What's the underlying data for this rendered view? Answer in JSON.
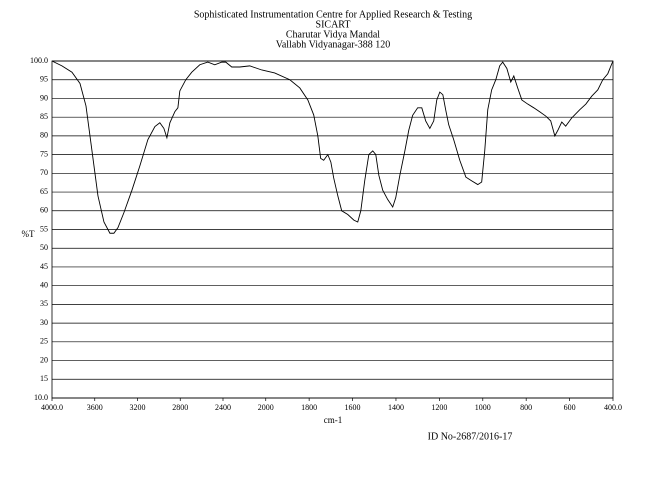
{
  "chart_data": {
    "type": "line",
    "title": "Sophisticated Instrumentation Centre for Applied Research & Testing",
    "subtitle": [
      "SICART",
      "Charutar Vidya Mandal",
      "Vallabh Vidyanagar-388 120"
    ],
    "xlabel": "cm-1",
    "ylabel": "%T",
    "annotation": "ID No-2687/2016-17",
    "color": "#000000",
    "grid": true,
    "xlim": [
      4000,
      400
    ],
    "x_scale_change": 2000,
    "ylim": [
      10,
      100
    ],
    "xticks": [
      {
        "value": 4000,
        "label": "4000.0"
      },
      3600,
      3200,
      2800,
      2400,
      2000,
      1800,
      1600,
      1400,
      1200,
      1000,
      800,
      600,
      {
        "value": 400,
        "label": "400.0"
      }
    ],
    "yticks": [
      {
        "value": 10,
        "label": "10.0"
      },
      15,
      20,
      25,
      30,
      35,
      40,
      45,
      50,
      55,
      60,
      65,
      70,
      75,
      80,
      85,
      90,
      95,
      {
        "value": 100,
        "label": "100.0"
      }
    ],
    "x": [
      4000,
      3907,
      3813,
      3738,
      3682,
      3626,
      3570,
      3514,
      3458,
      3421,
      3383,
      3327,
      3252,
      3178,
      3103,
      3037,
      2991,
      2953,
      2925,
      2897,
      2850,
      2822,
      2804,
      2748,
      2692,
      2617,
      2542,
      2477,
      2411,
      2374,
      2318,
      2243,
      2150,
      2037,
      1959,
      1889,
      1843,
      1806,
      1779,
      1760,
      1747,
      1733,
      1714,
      1700,
      1687,
      1668,
      1650,
      1622,
      1594,
      1576,
      1562,
      1544,
      1525,
      1507,
      1493,
      1479,
      1461,
      1438,
      1415,
      1401,
      1382,
      1359,
      1341,
      1323,
      1300,
      1281,
      1263,
      1244,
      1226,
      1212,
      1198,
      1184,
      1171,
      1157,
      1134,
      1106,
      1078,
      1051,
      1023,
      1005,
      991,
      977,
      959,
      940,
      922,
      908,
      889,
      871,
      857,
      839,
      820,
      793,
      765,
      737,
      710,
      687,
      668,
      654,
      636,
      618,
      590,
      553,
      525,
      498,
      470,
      447,
      424,
      406,
      400
    ],
    "values": [
      100,
      98.7,
      97,
      94,
      88,
      76,
      64,
      57,
      54,
      54,
      55.5,
      59.5,
      65.5,
      72,
      79,
      82.5,
      83.5,
      82,
      79.5,
      83.5,
      86.5,
      87.5,
      92,
      95,
      97,
      99,
      99.7,
      99,
      99.7,
      99.7,
      98.4,
      98.4,
      98.7,
      97.6,
      96.8,
      95,
      92.8,
      89.6,
      85.6,
      80,
      74,
      73.5,
      75,
      73,
      68.8,
      64,
      60,
      59,
      57.5,
      57,
      60,
      68,
      75,
      76,
      75,
      69.5,
      65.5,
      63,
      61,
      63.5,
      69.5,
      76,
      81.5,
      85.5,
      87.5,
      87.5,
      84,
      82,
      84,
      89.6,
      91.7,
      91,
      87,
      83,
      79,
      73.5,
      69,
      68,
      67,
      67.7,
      76,
      87,
      92.3,
      95,
      98.7,
      99.7,
      98,
      94.4,
      96,
      92.8,
      89.6,
      88.5,
      87.5,
      86.4,
      85.3,
      84,
      80,
      81.5,
      83.7,
      82.6,
      84.8,
      87,
      88.5,
      90.6,
      92.3,
      95,
      96.6,
      99.2,
      100
    ]
  }
}
